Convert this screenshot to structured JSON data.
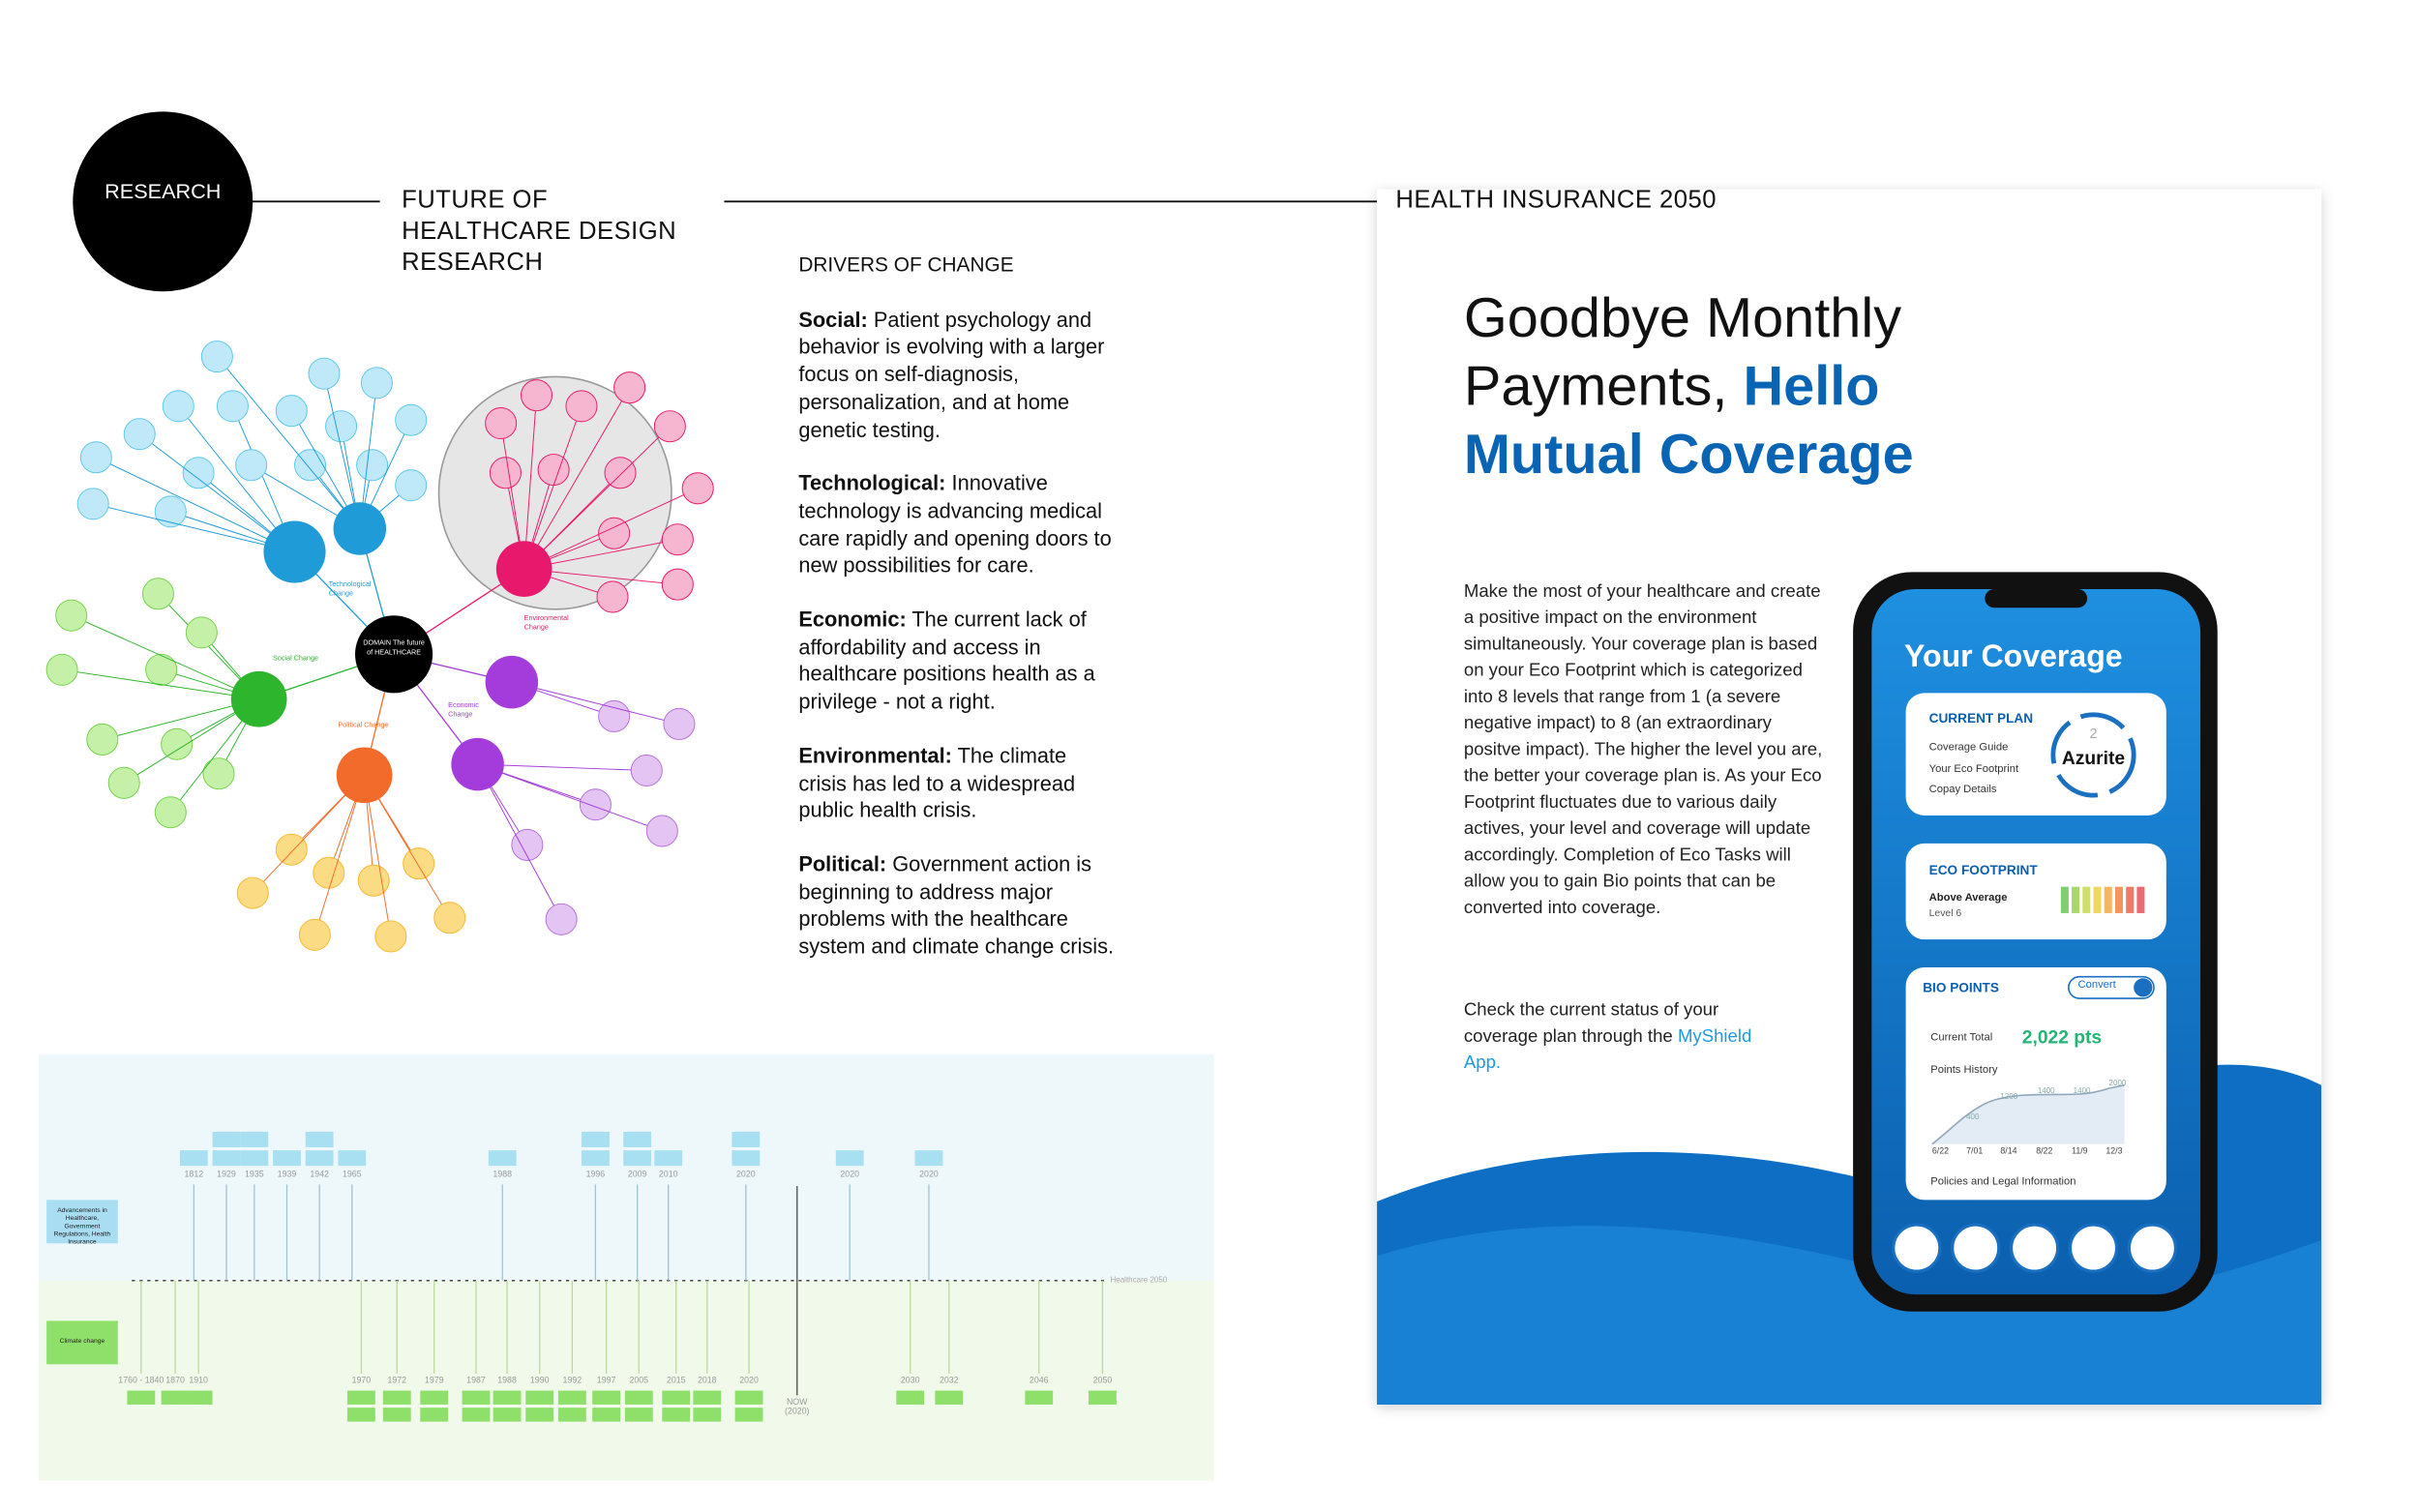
{
  "header": {
    "badge": "RESEARCH",
    "project": "FUTURE OF HEALTHCARE DESIGN RESEARCH",
    "right_title": "HEALTH INSURANCE 2050"
  },
  "drivers": {
    "title": "DRIVERS OF CHANGE",
    "items": [
      {
        "label": "Social:",
        "text": "Patient psychology and behavior is evolving with a larger focus on self-diagnosis, personalization, and at home genetic testing."
      },
      {
        "label": "Technological:",
        "text": "Innovative technology is advancing medical care rapidly and opening doors to new possibilities for care."
      },
      {
        "label": "Economic:",
        "text": "The current lack of affordability and access in healthcare positions health as a privilege - not a right."
      },
      {
        "label": "Environmental:",
        "text": "The climate crisis has led to a widespread public health crisis."
      },
      {
        "label": "Political:",
        "text": "Government action is beginning to address major problems with the healthcare system and climate change crisis."
      }
    ]
  },
  "mind_map": {
    "center": "DOMAIN The future of HEALTHCARE",
    "branches": [
      "Technological Change",
      "Environmental Change",
      "Social Change",
      "Economic Change",
      "Political Change"
    ]
  },
  "timeline": {
    "rows": [
      "Advancements in Healthcare, Government Regulations, Health Insurance",
      "Climate change"
    ],
    "end_label": "Healthcare 2050",
    "now_label": "NOW (2020)",
    "top_years": [
      "1812",
      "1929",
      "1935",
      "1939",
      "1942",
      "1965",
      "1988",
      "1996",
      "2009",
      "2010",
      "2020",
      "2020",
      "2020"
    ],
    "bottom_years": [
      "1760 - 1840",
      "1870",
      "1910",
      "1970",
      "1972",
      "1979",
      "1987",
      "1988",
      "1990",
      "1992",
      "1997",
      "2005",
      "2015",
      "2018",
      "2020",
      "2030",
      "2032",
      "2046",
      "2050"
    ]
  },
  "poster": {
    "headline_plain": "Goodbye Monthly Payments,",
    "headline_accent": "Hello Mutual Coverage",
    "body": "Make the most of your healthcare and create a positive impact on the environment simultaneously. Your coverage plan is based on your Eco Footprint which is categorized into 8 levels that range from 1 (a severe negative impact) to 8 (an extraordinary positve impact). The higher the level you are, the better your coverage plan is. As your Eco Footprint fluctuates due to various daily actives, your level and coverage will update accordingly. Completion of Eco Tasks will allow you to gain Bio points that can be converted into coverage.",
    "cta_text": "Check the current status of your coverage plan through the",
    "cta_link": "MyShield App."
  },
  "app": {
    "title": "Your Coverage",
    "plan": {
      "heading": "CURRENT PLAN",
      "links": [
        "Coverage Guide",
        "Your Eco Footprint",
        "Copay Details"
      ],
      "level": "2",
      "tier": "Azurite"
    },
    "eco": {
      "heading": "ECO FOOTPRINT",
      "status": "Above Average",
      "level": "Level 6"
    },
    "bio": {
      "heading": "BIO POINTS",
      "button": "Convert",
      "total_label": "Current Total",
      "total": "2,022 pts",
      "history_label": "Points History",
      "dates": [
        "6/22",
        "7/01",
        "8/14",
        "8/22",
        "11/9",
        "12/3"
      ],
      "point_labels": [
        "400",
        "1200",
        "1400",
        "1400",
        "2000"
      ],
      "footer": "Policies and Legal Information"
    }
  }
}
